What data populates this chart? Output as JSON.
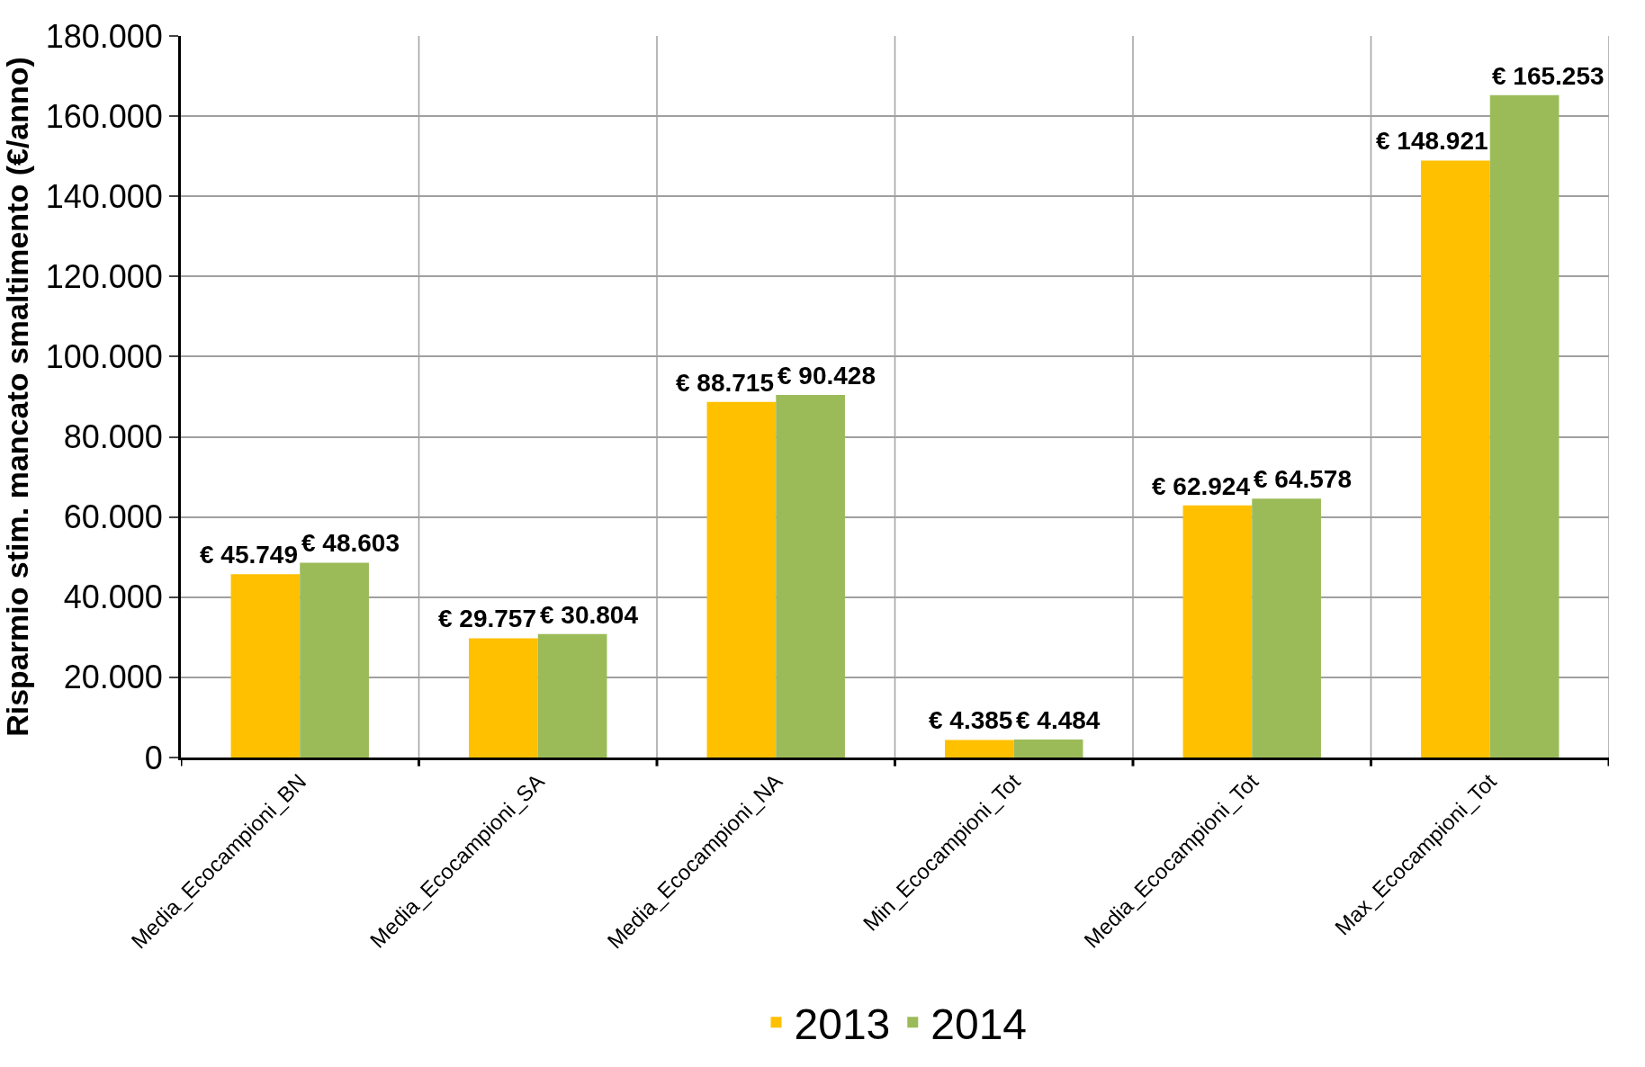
{
  "chart_data": {
    "type": "bar",
    "ylabel": "Risparmio stim. mancato smaltimento (€/anno)",
    "categories": [
      "Media_Ecocampioni_BN",
      "Media_Ecocampioni_SA",
      "Media_Ecocampioni_NA",
      "Min_Ecocampioni_Tot",
      "Media_Ecocampioni_Tot",
      "Max_Ecocampioni_Tot"
    ],
    "series": [
      {
        "name": "2013",
        "color": "#ffc000",
        "values": [
          45749,
          29757,
          88715,
          4385,
          62924,
          148921
        ],
        "value_labels": [
          "€ 45.749",
          "€ 29.757",
          "€ 88.715",
          "€ 4.385",
          "€ 62.924",
          "€ 148.921"
        ]
      },
      {
        "name": "2014",
        "color": "#9bbb59",
        "values": [
          48603,
          30804,
          90428,
          4484,
          64578,
          165253
        ],
        "value_labels": [
          "€ 48.603",
          "€ 30.804",
          "€ 90.428",
          "€ 4.484",
          "€ 64.578",
          "€ 165.253"
        ]
      }
    ],
    "ylim": [
      0,
      180000
    ],
    "yticks": [
      0,
      {
        "value": 20000,
        "label": "20.000"
      },
      {
        "value": 40000,
        "label": "40.000"
      },
      {
        "value": 60000,
        "label": "60.000"
      },
      {
        "value": 80000,
        "label": "80.000"
      },
      {
        "value": 100000,
        "label": "100.000"
      },
      {
        "value": 120000,
        "label": "120.000"
      },
      {
        "value": 140000,
        "label": "140.000"
      },
      {
        "value": 160000,
        "label": "160.000"
      },
      {
        "value": 180000,
        "label": "180.000"
      }
    ],
    "grid": true,
    "legend": "bottom"
  }
}
